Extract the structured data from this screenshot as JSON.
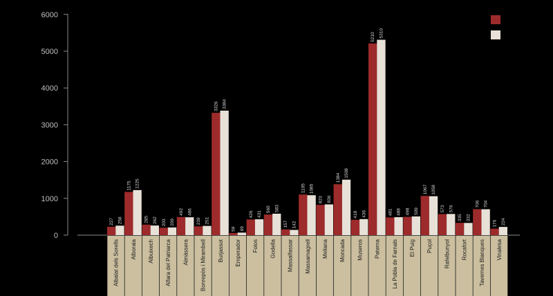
{
  "colors": {
    "background": "#000000",
    "series1": "#9e2b2b",
    "series2": "#e8e1d8",
    "category_band": "#cbbf9f",
    "axis": "#8c8c8c"
  },
  "chart_data": {
    "type": "bar",
    "title": "",
    "xlabel": "",
    "ylabel": "",
    "ylim": [
      0,
      6000
    ],
    "yticks": [
      "0",
      "1000",
      "2000",
      "3000",
      "4000",
      "5000",
      "6000"
    ],
    "legend_position": "top-right",
    "categories": [
      "Albalat dels Sorells",
      "Alboraia",
      "Albuixech",
      "Alfara del Patriarca",
      "Almàssera",
      "Bonrepòs i Mirambell",
      "Burjassot",
      "Emperador",
      "Foios",
      "Godella",
      "Massalfassar",
      "Massamagrell",
      "Meliana",
      "Moncada",
      "Museros",
      "Paterna",
      "La Pobla de Farnals",
      "El Puig",
      "Puçol",
      "Rafelbunyol",
      "Rocafort",
      "Tavernes Blanques",
      "Vinalesa"
    ],
    "series": [
      {
        "name": "",
        "values": [
          227,
          1175,
          285,
          203,
          492,
          239,
          3326,
          59,
          426,
          560,
          157,
          1105,
          823,
          1384,
          418,
          5210,
          481,
          498,
          1067,
          573,
          335,
          706,
          176
        ]
      },
      {
        "name": "",
        "values": [
          258,
          1225,
          262,
          209,
          486,
          251,
          3384,
          69,
          431,
          583,
          142,
          1085,
          836,
          1508,
          436,
          5310,
          488,
          509,
          1058,
          576,
          332,
          704,
          224
        ]
      }
    ]
  }
}
